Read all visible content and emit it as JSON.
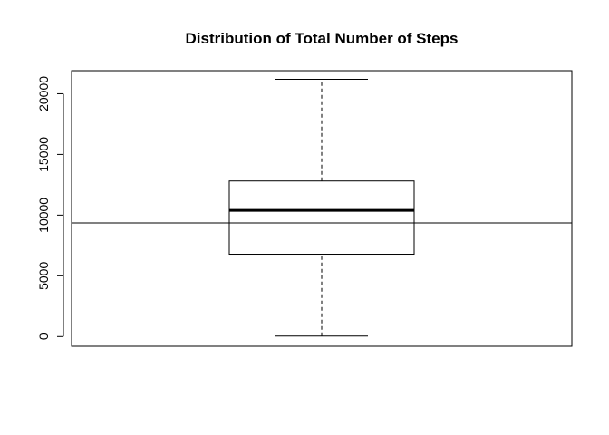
{
  "chart_data": {
    "type": "box",
    "title": "Distribution of Total Number of Steps",
    "xlabel": "",
    "ylabel": "",
    "ylim": [
      -800,
      21900
    ],
    "yticks": [
      0,
      5000,
      10000,
      15000,
      20000
    ],
    "yticklabels": [
      "0",
      "5000",
      "10000",
      "15000",
      "20000"
    ],
    "box": {
      "min": 41,
      "q1": 6778,
      "median": 10395,
      "q3": 12811,
      "max": 21194
    },
    "hline": 9354
  }
}
